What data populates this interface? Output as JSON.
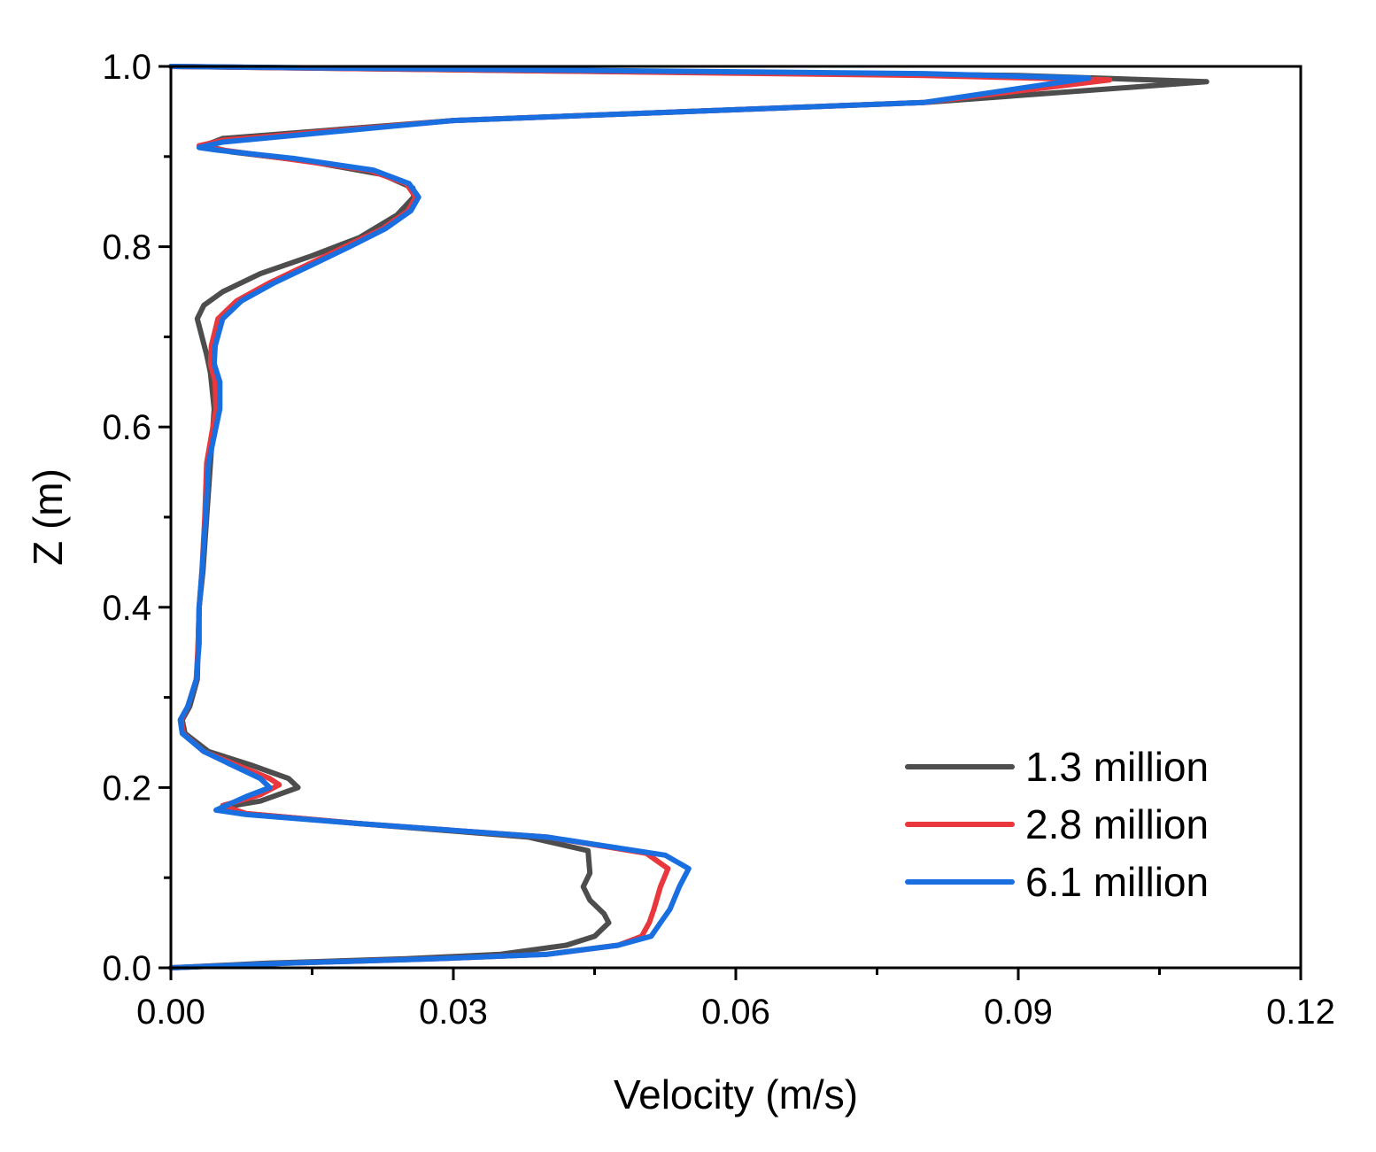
{
  "chart_data": {
    "type": "line",
    "title": "",
    "xlabel": "Velocity (m/s)",
    "ylabel": "Z (m)",
    "xlim": [
      0,
      0.12
    ],
    "ylim": [
      0,
      1.0
    ],
    "xticks": [
      0.0,
      0.03,
      0.06,
      0.09,
      0.12
    ],
    "xtick_labels": [
      "0.00",
      "0.03",
      "0.06",
      "0.09",
      "0.12"
    ],
    "yticks": [
      0.0,
      0.2,
      0.4,
      0.6,
      0.8,
      1.0
    ],
    "ytick_labels": [
      "0.0",
      "0.2",
      "0.4",
      "0.6",
      "0.8",
      "1.0"
    ],
    "grid": false,
    "legend_position": "bottom-right",
    "series": [
      {
        "name": "1.3 million",
        "color": "#4d4d4d",
        "points": [
          [
            0.0,
            0.0
          ],
          [
            0.01,
            0.005
          ],
          [
            0.025,
            0.01
          ],
          [
            0.035,
            0.015
          ],
          [
            0.042,
            0.025
          ],
          [
            0.045,
            0.035
          ],
          [
            0.0465,
            0.05
          ],
          [
            0.046,
            0.06
          ],
          [
            0.0445,
            0.075
          ],
          [
            0.0438,
            0.09
          ],
          [
            0.0445,
            0.105
          ],
          [
            0.0443,
            0.13
          ],
          [
            0.038,
            0.145
          ],
          [
            0.02,
            0.16
          ],
          [
            0.007,
            0.172
          ],
          [
            0.0055,
            0.178
          ],
          [
            0.0095,
            0.185
          ],
          [
            0.0135,
            0.2
          ],
          [
            0.0125,
            0.21
          ],
          [
            0.0085,
            0.225
          ],
          [
            0.004,
            0.24
          ],
          [
            0.0015,
            0.26
          ],
          [
            0.0012,
            0.275
          ],
          [
            0.002,
            0.29
          ],
          [
            0.0028,
            0.32
          ],
          [
            0.0029,
            0.36
          ],
          [
            0.003,
            0.4
          ],
          [
            0.0034,
            0.44
          ],
          [
            0.0038,
            0.5
          ],
          [
            0.0042,
            0.56
          ],
          [
            0.0046,
            0.62
          ],
          [
            0.0042,
            0.66
          ],
          [
            0.0038,
            0.68
          ],
          [
            0.0028,
            0.72
          ],
          [
            0.0035,
            0.735
          ],
          [
            0.0055,
            0.75
          ],
          [
            0.0095,
            0.77
          ],
          [
            0.015,
            0.79
          ],
          [
            0.02,
            0.81
          ],
          [
            0.024,
            0.835
          ],
          [
            0.0258,
            0.855
          ],
          [
            0.0257,
            0.865
          ],
          [
            0.0225,
            0.88
          ],
          [
            0.0145,
            0.895
          ],
          [
            0.0065,
            0.905
          ],
          [
            0.0035,
            0.912
          ],
          [
            0.0055,
            0.92
          ],
          [
            0.03,
            0.94
          ],
          [
            0.08,
            0.96
          ],
          [
            0.11,
            0.983
          ],
          [
            0.09,
            0.99
          ],
          [
            0.04,
            0.995
          ],
          [
            0.0,
            1.0
          ]
        ]
      },
      {
        "name": "2.8 million",
        "color": "#e8383d",
        "points": [
          [
            0.0,
            0.0
          ],
          [
            0.012,
            0.005
          ],
          [
            0.028,
            0.01
          ],
          [
            0.04,
            0.015
          ],
          [
            0.0475,
            0.025
          ],
          [
            0.05,
            0.035
          ],
          [
            0.0508,
            0.05
          ],
          [
            0.0513,
            0.065
          ],
          [
            0.052,
            0.09
          ],
          [
            0.0528,
            0.11
          ],
          [
            0.0505,
            0.127
          ],
          [
            0.04,
            0.145
          ],
          [
            0.02,
            0.16
          ],
          [
            0.008,
            0.171
          ],
          [
            0.0055,
            0.18
          ],
          [
            0.0095,
            0.192
          ],
          [
            0.0115,
            0.203
          ],
          [
            0.0105,
            0.21
          ],
          [
            0.007,
            0.225
          ],
          [
            0.0035,
            0.24
          ],
          [
            0.0013,
            0.26
          ],
          [
            0.0011,
            0.275
          ],
          [
            0.0018,
            0.29
          ],
          [
            0.0027,
            0.32
          ],
          [
            0.0029,
            0.36
          ],
          [
            0.003,
            0.4
          ],
          [
            0.0033,
            0.44
          ],
          [
            0.0036,
            0.5
          ],
          [
            0.0038,
            0.56
          ],
          [
            0.0048,
            0.62
          ],
          [
            0.0047,
            0.65
          ],
          [
            0.0042,
            0.67
          ],
          [
            0.0043,
            0.69
          ],
          [
            0.005,
            0.72
          ],
          [
            0.007,
            0.74
          ],
          [
            0.0105,
            0.76
          ],
          [
            0.0145,
            0.78
          ],
          [
            0.0185,
            0.8
          ],
          [
            0.0225,
            0.82
          ],
          [
            0.0252,
            0.84
          ],
          [
            0.026,
            0.855
          ],
          [
            0.025,
            0.87
          ],
          [
            0.021,
            0.885
          ],
          [
            0.012,
            0.898
          ],
          [
            0.005,
            0.908
          ],
          [
            0.003,
            0.912
          ],
          [
            0.0055,
            0.918
          ],
          [
            0.03,
            0.94
          ],
          [
            0.08,
            0.96
          ],
          [
            0.0997,
            0.985
          ],
          [
            0.08,
            0.99
          ],
          [
            0.04,
            0.995
          ],
          [
            0.0,
            1.0
          ]
        ]
      },
      {
        "name": "6.1 million",
        "color": "#1a6fe0",
        "points": [
          [
            0.0,
            0.0
          ],
          [
            0.012,
            0.005
          ],
          [
            0.028,
            0.01
          ],
          [
            0.04,
            0.015
          ],
          [
            0.0475,
            0.025
          ],
          [
            0.051,
            0.035
          ],
          [
            0.052,
            0.05
          ],
          [
            0.053,
            0.065
          ],
          [
            0.054,
            0.09
          ],
          [
            0.055,
            0.11
          ],
          [
            0.0525,
            0.125
          ],
          [
            0.04,
            0.145
          ],
          [
            0.02,
            0.16
          ],
          [
            0.008,
            0.17
          ],
          [
            0.0048,
            0.175
          ],
          [
            0.008,
            0.19
          ],
          [
            0.0105,
            0.2
          ],
          [
            0.0095,
            0.21
          ],
          [
            0.0065,
            0.225
          ],
          [
            0.0035,
            0.24
          ],
          [
            0.0012,
            0.26
          ],
          [
            0.001,
            0.275
          ],
          [
            0.0018,
            0.29
          ],
          [
            0.0027,
            0.32
          ],
          [
            0.003,
            0.36
          ],
          [
            0.003,
            0.4
          ],
          [
            0.0033,
            0.44
          ],
          [
            0.0037,
            0.5
          ],
          [
            0.004,
            0.56
          ],
          [
            0.0052,
            0.62
          ],
          [
            0.0052,
            0.65
          ],
          [
            0.0046,
            0.67
          ],
          [
            0.0047,
            0.69
          ],
          [
            0.0055,
            0.72
          ],
          [
            0.0075,
            0.74
          ],
          [
            0.011,
            0.76
          ],
          [
            0.015,
            0.78
          ],
          [
            0.019,
            0.8
          ],
          [
            0.0228,
            0.82
          ],
          [
            0.0255,
            0.84
          ],
          [
            0.0263,
            0.855
          ],
          [
            0.0253,
            0.87
          ],
          [
            0.0215,
            0.885
          ],
          [
            0.013,
            0.898
          ],
          [
            0.005,
            0.907
          ],
          [
            0.003,
            0.91
          ],
          [
            0.0055,
            0.916
          ],
          [
            0.03,
            0.94
          ],
          [
            0.08,
            0.96
          ],
          [
            0.0975,
            0.987
          ],
          [
            0.08,
            0.992
          ],
          [
            0.04,
            0.996
          ],
          [
            0.0,
            1.0
          ]
        ]
      }
    ]
  }
}
